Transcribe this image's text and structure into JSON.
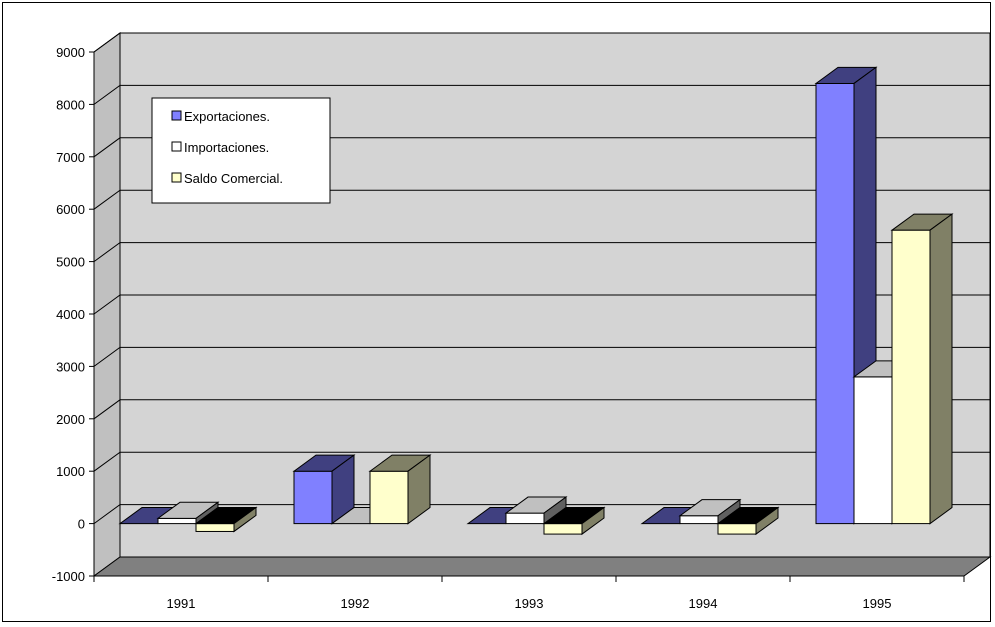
{
  "chart_data": {
    "type": "bar",
    "categories": [
      "1991",
      "1992",
      "1993",
      "1994",
      "1995"
    ],
    "series": [
      {
        "name": "Exportaciones.",
        "values": [
          0,
          1000,
          0,
          0,
          8400
        ],
        "color": "#8080ff"
      },
      {
        "name": "Importaciones.",
        "values": [
          100,
          0,
          200,
          150,
          2800
        ],
        "color": "#ffffff"
      },
      {
        "name": "Saldo Comercial.",
        "values": [
          -150,
          1000,
          -200,
          -200,
          5600
        ],
        "color": "#ffffcc"
      }
    ],
    "ylim": [
      -1000,
      9000
    ],
    "yticks": [
      "-1000",
      "0",
      "1000",
      "2000",
      "3000",
      "4000",
      "5000",
      "6000",
      "7000",
      "8000",
      "9000"
    ],
    "grid": true,
    "legend_position": "top-left"
  }
}
